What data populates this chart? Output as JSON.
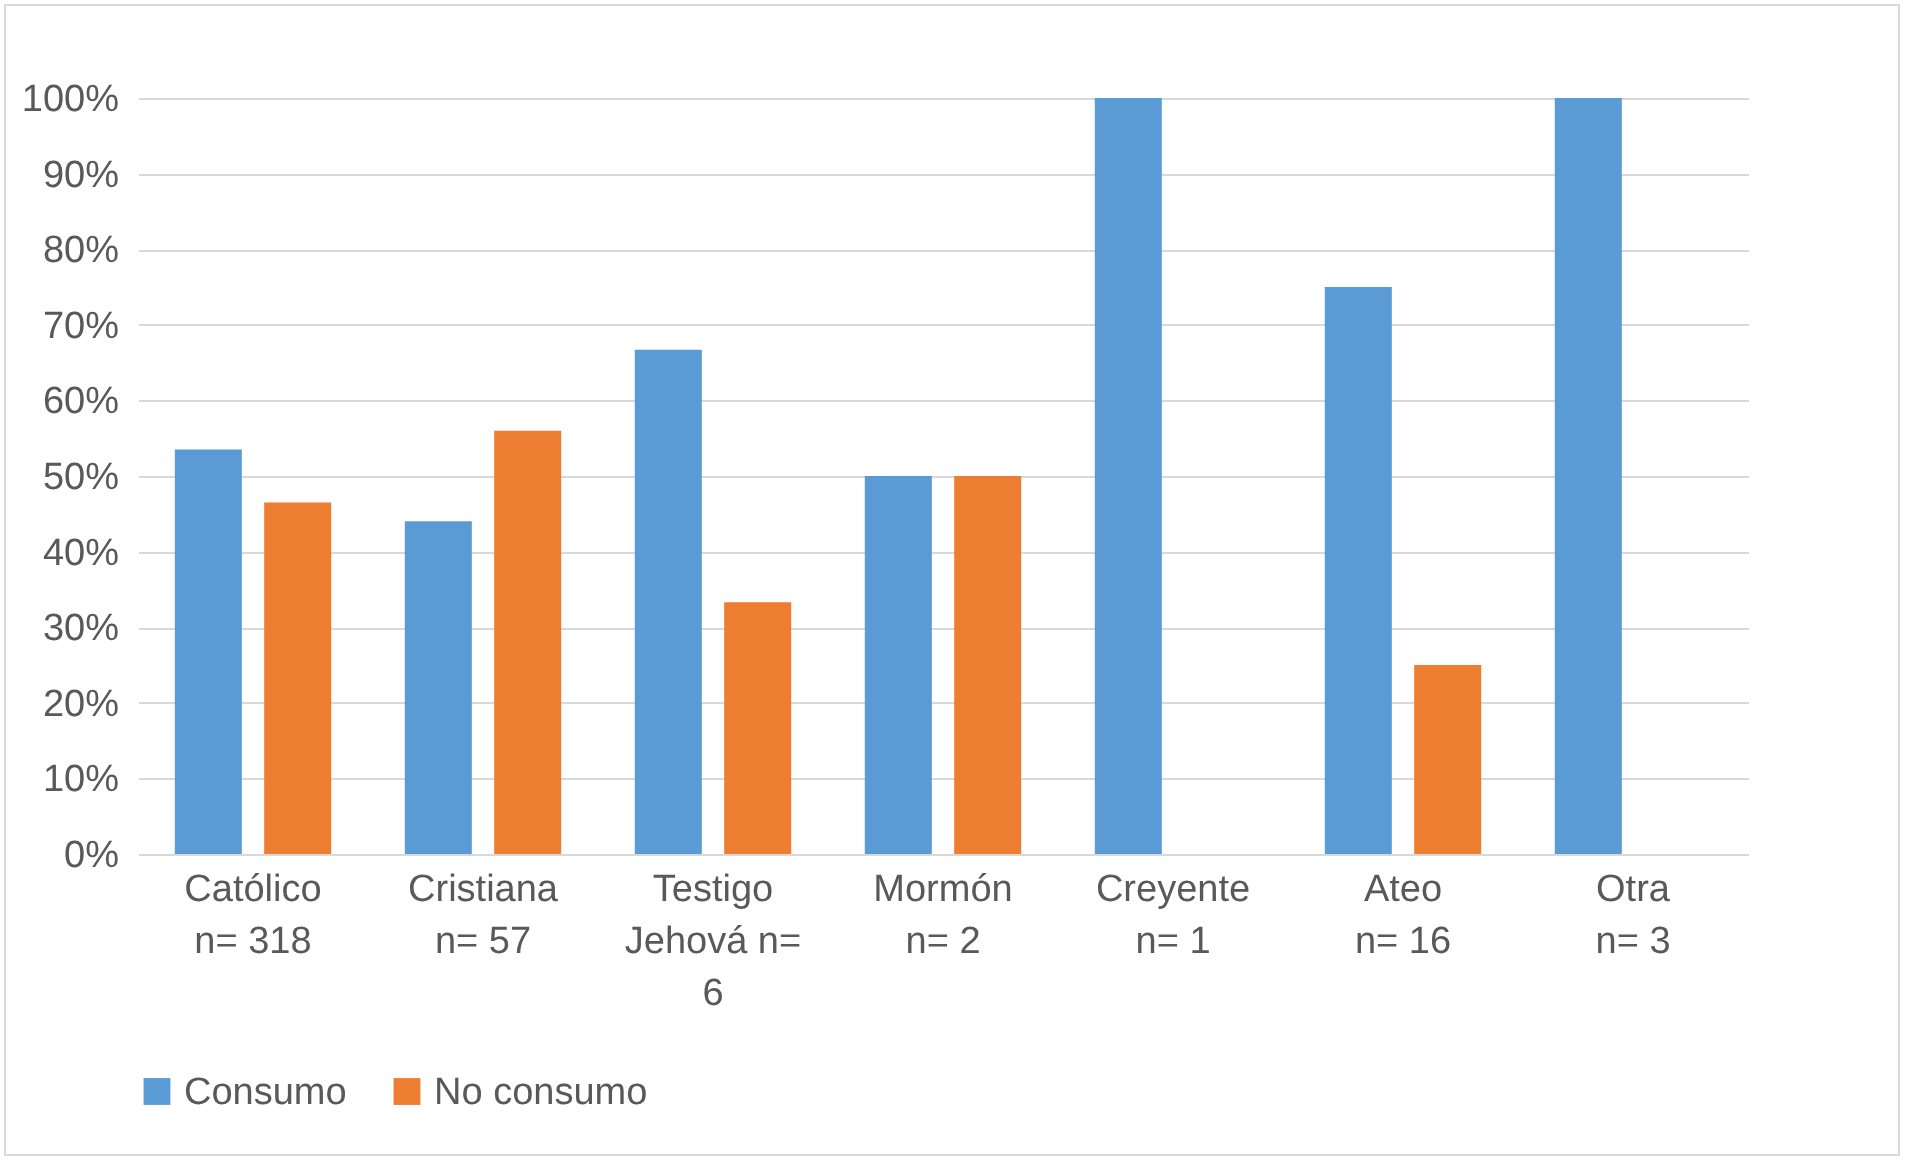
{
  "chart_data": {
    "type": "bar",
    "categories": [
      "Católico\nn= 318",
      "Cristiana\nn= 57",
      "Testigo\nJehová n=\n6",
      "Mormón\nn= 2",
      "Creyente\nn= 1",
      "Ateo\nn= 16",
      "Otra\nn= 3"
    ],
    "series": [
      {
        "name": "Consumo",
        "color": "#5b9bd5",
        "values": [
          53.5,
          44,
          66.7,
          50,
          100,
          75,
          100
        ]
      },
      {
        "name": "No consumo",
        "color": "#ed7d31",
        "values": [
          46.5,
          56,
          33.3,
          50,
          0,
          25,
          0
        ]
      }
    ],
    "ylim": [
      0,
      100
    ],
    "yticks": [
      {
        "value": 0,
        "label": "0%"
      },
      {
        "value": 10,
        "label": "10%"
      },
      {
        "value": 20,
        "label": "20%"
      },
      {
        "value": 30,
        "label": "30%"
      },
      {
        "value": 40,
        "label": "40%"
      },
      {
        "value": 50,
        "label": "50%"
      },
      {
        "value": 60,
        "label": "60%"
      },
      {
        "value": 70,
        "label": "70%"
      },
      {
        "value": 80,
        "label": "80%"
      },
      {
        "value": 90,
        "label": "90%"
      },
      {
        "value": 100,
        "label": "100%"
      }
    ],
    "grid": true,
    "legend": "bottom"
  }
}
